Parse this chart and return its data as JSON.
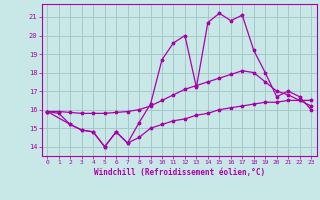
{
  "background_color": "#c8e8e8",
  "grid_color": "#a8c8c8",
  "line_color": "#aa00aa",
  "xlabel": "Windchill (Refroidissement éolien,°C)",
  "xlim": [
    -0.5,
    23.5
  ],
  "ylim": [
    13.5,
    21.7
  ],
  "yticks": [
    14,
    15,
    16,
    17,
    18,
    19,
    20,
    21
  ],
  "xticks": [
    0,
    1,
    2,
    3,
    4,
    5,
    6,
    7,
    8,
    9,
    10,
    11,
    12,
    13,
    14,
    15,
    16,
    17,
    18,
    19,
    20,
    21,
    22,
    23
  ],
  "line1_x": [
    0,
    1,
    2,
    3,
    4,
    5,
    6,
    7,
    8,
    9,
    10,
    11,
    12,
    13,
    14,
    15,
    16,
    17,
    18,
    19,
    20,
    21,
    22,
    23
  ],
  "line1_y": [
    15.9,
    15.8,
    15.2,
    14.9,
    14.8,
    14.0,
    14.8,
    14.2,
    14.5,
    15.0,
    15.2,
    15.4,
    15.5,
    15.7,
    15.8,
    16.0,
    16.1,
    16.2,
    16.3,
    16.4,
    16.4,
    16.5,
    16.5,
    16.5
  ],
  "line2_x": [
    0,
    1,
    2,
    3,
    4,
    5,
    6,
    7,
    8,
    9,
    10,
    11,
    12,
    13,
    14,
    15,
    16,
    17,
    18,
    19,
    20,
    21,
    22,
    23
  ],
  "line2_y": [
    15.9,
    15.9,
    15.85,
    15.8,
    15.8,
    15.8,
    15.85,
    15.9,
    16.0,
    16.2,
    16.5,
    16.8,
    17.1,
    17.3,
    17.5,
    17.7,
    17.9,
    18.1,
    18.0,
    17.5,
    17.0,
    16.8,
    16.5,
    16.2
  ],
  "line3_x": [
    0,
    2,
    3,
    4,
    5,
    6,
    7,
    8,
    9,
    10,
    11,
    12,
    13,
    14,
    15,
    16,
    17,
    18,
    19,
    20,
    21,
    22,
    23
  ],
  "line3_y": [
    15.9,
    15.2,
    14.9,
    14.8,
    14.0,
    14.8,
    14.2,
    15.3,
    16.3,
    18.7,
    19.6,
    20.0,
    17.2,
    20.7,
    21.2,
    20.8,
    21.1,
    19.2,
    18.0,
    16.7,
    17.0,
    16.7,
    16.0
  ]
}
